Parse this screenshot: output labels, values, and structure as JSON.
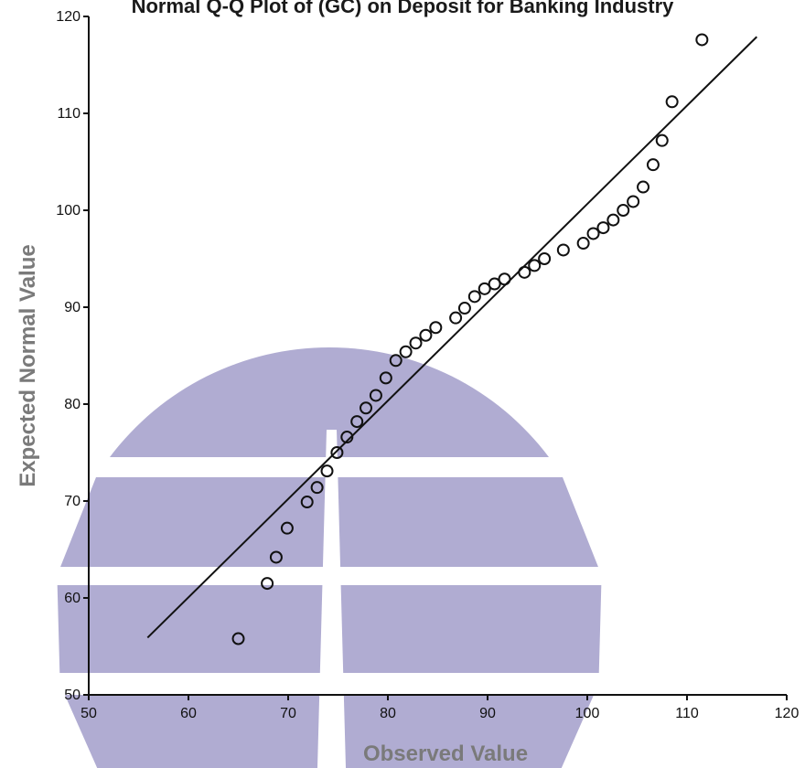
{
  "chart_data": {
    "type": "scatter",
    "title": "Normal Q-Q Plot of (GC) on Deposit for Banking Industry",
    "xlabel": "Observed Value",
    "ylabel": "Expected Normal Value",
    "xlim": [
      50,
      120
    ],
    "ylim": [
      50,
      120
    ],
    "xticks": [
      "50",
      "60",
      "70",
      "80",
      "90",
      "100",
      "110",
      "120"
    ],
    "yticks": [
      "50",
      "60",
      "70",
      "80",
      "90",
      "100",
      "110",
      "120"
    ],
    "grid": false,
    "points": [
      {
        "x": 65.0,
        "y": 55.8
      },
      {
        "x": 67.9,
        "y": 61.5
      },
      {
        "x": 68.8,
        "y": 64.2
      },
      {
        "x": 69.9,
        "y": 67.2
      },
      {
        "x": 71.9,
        "y": 69.9
      },
      {
        "x": 72.9,
        "y": 71.4
      },
      {
        "x": 73.9,
        "y": 73.1
      },
      {
        "x": 74.9,
        "y": 75.0
      },
      {
        "x": 75.9,
        "y": 76.6
      },
      {
        "x": 76.9,
        "y": 78.2
      },
      {
        "x": 77.8,
        "y": 79.6
      },
      {
        "x": 78.8,
        "y": 80.9
      },
      {
        "x": 79.8,
        "y": 82.7
      },
      {
        "x": 80.8,
        "y": 84.5
      },
      {
        "x": 81.8,
        "y": 85.4
      },
      {
        "x": 82.8,
        "y": 86.3
      },
      {
        "x": 83.8,
        "y": 87.1
      },
      {
        "x": 84.8,
        "y": 87.9
      },
      {
        "x": 86.8,
        "y": 88.9
      },
      {
        "x": 87.7,
        "y": 89.9
      },
      {
        "x": 88.7,
        "y": 91.1
      },
      {
        "x": 89.7,
        "y": 91.9
      },
      {
        "x": 90.7,
        "y": 92.4
      },
      {
        "x": 91.7,
        "y": 92.9
      },
      {
        "x": 93.7,
        "y": 93.6
      },
      {
        "x": 94.7,
        "y": 94.3
      },
      {
        "x": 95.7,
        "y": 95.0
      },
      {
        "x": 97.6,
        "y": 95.9
      },
      {
        "x": 99.6,
        "y": 96.6
      },
      {
        "x": 100.6,
        "y": 97.6
      },
      {
        "x": 101.6,
        "y": 98.2
      },
      {
        "x": 102.6,
        "y": 99.0
      },
      {
        "x": 103.6,
        "y": 100.0
      },
      {
        "x": 104.6,
        "y": 100.9
      },
      {
        "x": 105.6,
        "y": 102.4
      },
      {
        "x": 106.6,
        "y": 104.7
      },
      {
        "x": 107.5,
        "y": 107.2
      },
      {
        "x": 108.5,
        "y": 111.2
      },
      {
        "x": 111.5,
        "y": 117.6
      }
    ],
    "reference_line": {
      "x": [
        55.9,
        117.0
      ],
      "y": [
        55.9,
        117.9
      ]
    }
  },
  "colors": {
    "axis": "#111111",
    "points": "#111111",
    "reference_line": "#111111",
    "watermark": "#b0acd2"
  }
}
